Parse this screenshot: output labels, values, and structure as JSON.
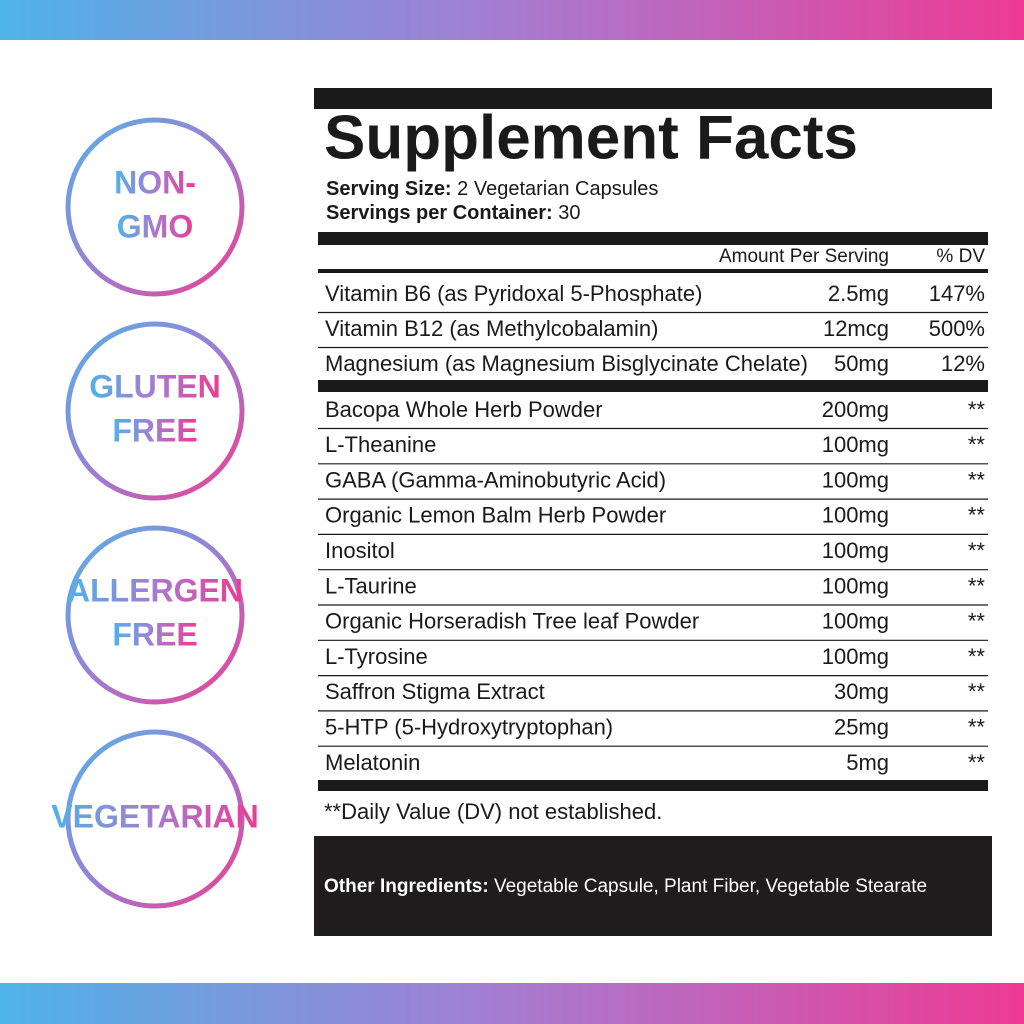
{
  "badges": [
    [
      "NON-",
      "GMO"
    ],
    [
      "GLUTEN",
      "FREE"
    ],
    [
      "ALLERGEN",
      "FREE"
    ],
    [
      "VEGETARIAN"
    ]
  ],
  "title": "Supplement Facts",
  "serving_size": {
    "label": "Serving Size:",
    "value": "2 Vegetarian Capsules"
  },
  "servings_per_container": {
    "label": "Servings per Container:",
    "value": "30"
  },
  "header": {
    "amount": "Amount Per Serving",
    "dv": "% DV"
  },
  "vitamins": [
    [
      "Vitamin B6 (as Pyridoxal 5-Phosphate)",
      "2.5mg",
      "147%"
    ],
    [
      "Vitamin B12 (as Methylcobalamin)",
      "12mcg",
      "500%"
    ],
    [
      "Magnesium (as Magnesium Bisglycinate Chelate)",
      "50mg",
      "12%"
    ]
  ],
  "herbs": [
    [
      "Bacopa Whole Herb Powder",
      "200mg",
      "**"
    ],
    [
      "L-Theanine",
      "100mg",
      "**"
    ],
    [
      "GABA (Gamma-Aminobutyric Acid)",
      "100mg",
      "**"
    ],
    [
      "Organic Lemon Balm Herb Powder",
      "100mg",
      "**"
    ],
    [
      "Inositol",
      "100mg",
      "**"
    ],
    [
      "L-Taurine",
      "100mg",
      "**"
    ],
    [
      "Organic Horseradish Tree leaf Powder",
      "100mg",
      "**"
    ],
    [
      "L-Tyrosine",
      "100mg",
      "**"
    ],
    [
      "Saffron Stigma Extract",
      "30mg",
      "**"
    ],
    [
      "5-HTP (5-Hydroxytryptophan)",
      "25mg",
      "**"
    ],
    [
      "Melatonin",
      "5mg",
      "**"
    ]
  ],
  "footnote": "**Daily Value (DV) not established.",
  "other_ingredients": {
    "label": "Other  Ingredients:",
    "value": "Vegetable Capsule, Plant Fiber, Vegetable Stearate"
  }
}
